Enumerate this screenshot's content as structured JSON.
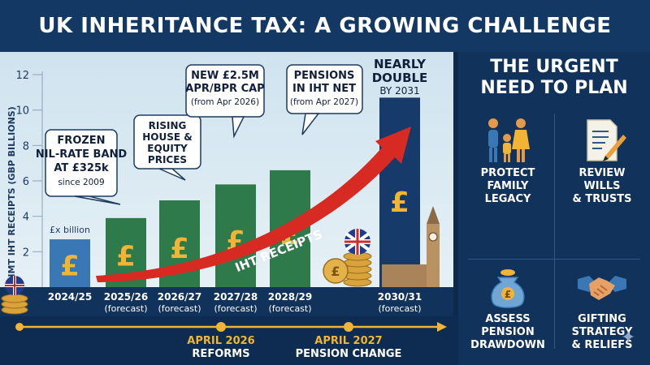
{
  "title": "UK INHERITANCE TAX: A GROWING CHALLENGE",
  "chart_data": {
    "type": "bar",
    "ylabel": "HMT IHT RECEIPTS (GBP BILLIONS)",
    "ylim": [
      0,
      12
    ],
    "yticks": [
      2,
      4,
      6,
      8,
      10,
      12
    ],
    "unit_label": "£x billion",
    "bar_symbol": "£",
    "categories": [
      {
        "label": "2024/25",
        "sub": ""
      },
      {
        "label": "2025/26",
        "sub": "(forecast)"
      },
      {
        "label": "2026/27",
        "sub": "(forecast)"
      },
      {
        "label": "2027/28",
        "sub": "(forecast)"
      },
      {
        "label": "2028/29",
        "sub": "(forecast)"
      },
      {
        "label": "2030/31",
        "sub": "(forecast)"
      }
    ],
    "values": [
      2.7,
      3.9,
      4.9,
      5.8,
      6.6,
      10.7
    ],
    "colors": [
      "#3a78b5",
      "#2e7a4a",
      "#2e7a4a",
      "#2e7a4a",
      "#2e7a4a",
      "#163a6a"
    ],
    "trend_label": "IHT RECEIPTS",
    "annotations": [
      {
        "lines": [
          "FROZEN",
          "NIL-RATE BAND",
          "AT £325k"
        ],
        "note": "since 2009"
      },
      {
        "lines": [
          "RISING",
          "HOUSE &",
          "EQUITY",
          "PRICES"
        ],
        "note": ""
      },
      {
        "lines": [
          "NEW £2.5M",
          "APR/BPR CAP"
        ],
        "note": "(from Apr 2026)"
      },
      {
        "lines": [
          "PENSIONS",
          "IN IHT NET"
        ],
        "note": "(from Apr 2027)"
      },
      {
        "lines": [
          "NEARLY",
          "DOUBLE"
        ],
        "note": "BY 2031"
      }
    ]
  },
  "timeline": {
    "events": [
      {
        "date": "APRIL 2026",
        "label": "REFORMS"
      },
      {
        "date": "APRIL 2027",
        "label": "PENSION CHANGE"
      }
    ]
  },
  "plan": {
    "title_line1": "THE URGENT",
    "title_line2": "NEED TO PLAN",
    "items": [
      {
        "icon": "family-icon",
        "lines": [
          "PROTECT",
          "FAMILY",
          "LEGACY"
        ]
      },
      {
        "icon": "will-document-icon",
        "lines": [
          "REVIEW",
          "WILLS",
          "& TRUSTS"
        ]
      },
      {
        "icon": "pension-pot-icon",
        "lines": [
          "ASSESS",
          "PENSION",
          "DRAWDOWN"
        ]
      },
      {
        "icon": "handshake-icon",
        "lines": [
          "GIFTING",
          "STRATEGY",
          "& RELIEFS"
        ]
      }
    ]
  },
  "colors": {
    "accent_gold": "#f2b437",
    "arrow_red": "#d62a22",
    "navy": "#10325b"
  }
}
